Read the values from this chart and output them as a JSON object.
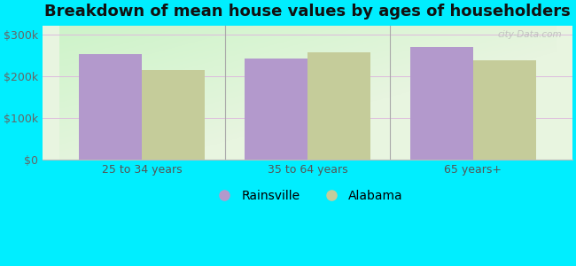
{
  "title": "Breakdown of mean house values by ages of householders",
  "categories": [
    "25 to 34 years",
    "35 to 64 years",
    "65 years+"
  ],
  "rainsville_values": [
    253000,
    243000,
    270000
  ],
  "alabama_values": [
    215000,
    258000,
    238000
  ],
  "rainsville_color": "#b399cc",
  "alabama_color": "#c5cc9a",
  "bar_width": 0.38,
  "ylim": [
    0,
    320000
  ],
  "yticks": [
    0,
    100000,
    200000,
    300000
  ],
  "ytick_labels": [
    "$0",
    "$100k",
    "$200k",
    "$300k"
  ],
  "background_color": "#00eeff",
  "legend_rainsville": "Rainsville",
  "legend_alabama": "Alabama",
  "title_fontsize": 13,
  "tick_fontsize": 9,
  "legend_fontsize": 10,
  "separator_color": "#aaaaaa",
  "grid_color": "#ddccdd",
  "watermark": "city-Data.com"
}
